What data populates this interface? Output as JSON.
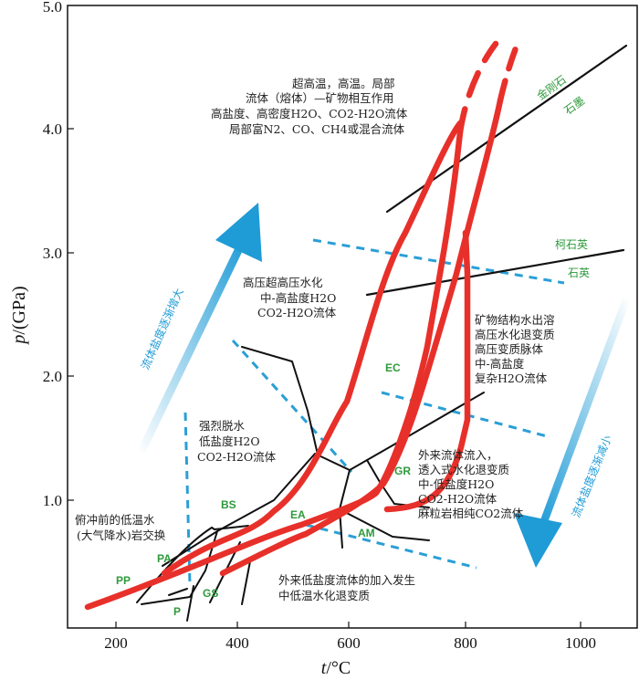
{
  "axes": {
    "x_ticks": [
      "200",
      "400",
      "600",
      "800",
      "1000"
    ],
    "y_ticks": [
      "1.0",
      "2.0",
      "3.0",
      "4.0",
      "5.0"
    ],
    "x_label_var": "t",
    "x_label_unit": "/°C",
    "y_label_var": "p",
    "y_label_unit": "/(GPa)"
  },
  "phase_labels": {
    "diamond": "金刚石",
    "graphite": "石墨",
    "coesite": "柯石英",
    "quartz": "石英"
  },
  "facies": {
    "BS": "BS",
    "EC": "EC",
    "EA": "EA",
    "GR": "GR",
    "AM": "AM",
    "PA": "PA",
    "PP": "PP",
    "GS": "GS",
    "P": "P"
  },
  "annotations": {
    "top": [
      "超高温，高温。局部",
      "流体（熔体）—矿物相互作用",
      "高盐度、高密度H2O、CO2-H2O流体",
      "局部富N2、CO、CH4或混合流体"
    ],
    "hp": [
      "高压超高压水化",
      "中-高盐度H2O",
      "CO2-H2O流体"
    ],
    "right": [
      "矿物结构水出溶",
      "高压水化退变质",
      "高压变质脉体",
      "中-高盐度",
      "复杂H2O流体"
    ],
    "dehydration": [
      "强烈脱水",
      "低盐度H2O",
      "CO2-H2O流体"
    ],
    "external": [
      "外来流体流入，",
      "透入式水化退变质",
      "中-低盐度H2O",
      "CO2-H2O流体",
      "麻粒岩相纯CO2流体"
    ],
    "subduction": [
      "俯冲前的低温水",
      "(大气降水)岩交换"
    ],
    "low_salinity": [
      "外来低盐度流体的加入发生",
      "中低温水化退变质"
    ]
  },
  "arrows": {
    "increase": "流体盐度逐渐增大",
    "decrease": "流体盐度逐渐减小"
  },
  "colors": {
    "path": "#e8302a",
    "dashed": "#2a9fd6",
    "arrow": "#1f9bd6",
    "facies": "#2e9a3c",
    "line": "#111111"
  }
}
